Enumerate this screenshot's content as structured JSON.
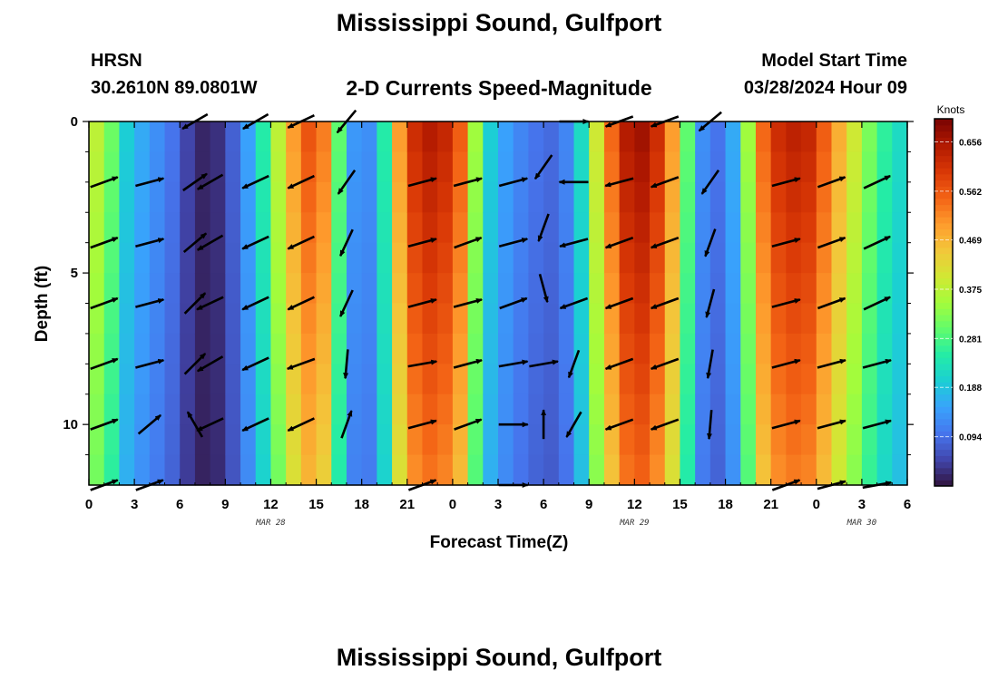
{
  "header": {
    "title": "Mississippi Sound, Gulfport",
    "station_code": "HRSN",
    "coordinates": "30.2610N  89.0801W",
    "subtitle": "2-D Currents Speed-Magnitude",
    "model_start_label": "Model Start Time",
    "model_start_value": "03/28/2024 Hour 09",
    "footer_title": "Mississippi Sound, Gulfport"
  },
  "colors": {
    "ramp": [
      "#30123b",
      "#4145ab",
      "#4675ed",
      "#39a2fc",
      "#1bcfd4",
      "#24eca6",
      "#61fc6c",
      "#a4fc3b",
      "#d1e834",
      "#f3c63a",
      "#fe9b2d",
      "#f36315",
      "#d93806",
      "#b11901",
      "#7a0402"
    ],
    "arrow": "#000000",
    "frame": "#000000"
  },
  "chart_data": {
    "type": "heatmap",
    "title": "2-D Currents Speed-Magnitude",
    "xlabel": "Forecast Time(Z)",
    "ylabel": "Depth (ft)",
    "x_ticks": [
      "0",
      "3",
      "6",
      "9",
      "12",
      "15",
      "18",
      "21",
      "0",
      "3",
      "6",
      "9",
      "12",
      "15",
      "18",
      "21",
      "0",
      "3",
      "6"
    ],
    "date_labels": [
      {
        "label": "MAR 28",
        "hour": 12
      },
      {
        "label": "MAR 29",
        "hour": 36
      },
      {
        "label": "MAR 30",
        "hour": 51
      }
    ],
    "x_range_hours": [
      0,
      54
    ],
    "y_ticks": [
      "0",
      "5",
      "10"
    ],
    "y_range_ft": [
      0,
      12
    ],
    "colorbar": {
      "unit": "Knots",
      "min": 0.0,
      "max": 0.7,
      "ticks": [
        "0.656",
        "0.562",
        "0.469",
        "0.375",
        "0.281",
        "0.188",
        "0.094"
      ]
    },
    "speed_by_hour_knots": [
      0.38,
      0.31,
      0.2,
      0.16,
      0.13,
      0.1,
      0.05,
      0.02,
      0.03,
      0.08,
      0.15,
      0.25,
      0.38,
      0.5,
      0.57,
      0.53,
      0.3,
      0.14,
      0.13,
      0.25,
      0.5,
      0.62,
      0.65,
      0.63,
      0.56,
      0.35,
      0.2,
      0.15,
      0.12,
      0.1,
      0.09,
      0.12,
      0.22,
      0.4,
      0.55,
      0.65,
      0.67,
      0.62,
      0.5,
      0.3,
      0.13,
      0.1,
      0.16,
      0.35,
      0.55,
      0.62,
      0.64,
      0.63,
      0.56,
      0.48,
      0.4,
      0.32,
      0.26,
      0.22,
      0.18
    ],
    "arrows": [
      {
        "hour": 1,
        "dir": [
          {
            "depth": 2,
            "angle": 20
          },
          {
            "depth": 4,
            "angle": 20
          },
          {
            "depth": 6,
            "angle": 20
          },
          {
            "depth": 8,
            "angle": 20
          },
          {
            "depth": 10,
            "angle": 20
          },
          {
            "depth": 12,
            "angle": 20
          }
        ]
      },
      {
        "hour": 4,
        "dir": [
          {
            "depth": 2,
            "angle": 15
          },
          {
            "depth": 4,
            "angle": 15
          },
          {
            "depth": 6,
            "angle": 15
          },
          {
            "depth": 8,
            "angle": 15
          },
          {
            "depth": 10,
            "angle": 40
          },
          {
            "depth": 12,
            "angle": 20
          }
        ]
      },
      {
        "hour": 7,
        "dir": [
          {
            "depth": 0,
            "angle": -150
          },
          {
            "depth": 2,
            "angle": 35
          },
          {
            "depth": 4,
            "angle": 40
          },
          {
            "depth": 6,
            "angle": 45
          },
          {
            "depth": 8,
            "angle": 45
          },
          {
            "depth": 10,
            "angle": 120
          }
        ]
      },
      {
        "hour": 8,
        "dir": [
          {
            "depth": 2,
            "angle": -150
          },
          {
            "depth": 4,
            "angle": -150
          },
          {
            "depth": 6,
            "angle": -155
          },
          {
            "depth": 8,
            "angle": -150
          },
          {
            "depth": 10,
            "angle": -155
          }
        ]
      },
      {
        "hour": 11,
        "dir": [
          {
            "depth": 0,
            "angle": -150
          },
          {
            "depth": 2,
            "angle": -155
          },
          {
            "depth": 4,
            "angle": -155
          },
          {
            "depth": 6,
            "angle": -155
          },
          {
            "depth": 8,
            "angle": -155
          },
          {
            "depth": 10,
            "angle": -155
          }
        ]
      },
      {
        "hour": 14,
        "dir": [
          {
            "depth": 0,
            "angle": -155
          },
          {
            "depth": 2,
            "angle": -155
          },
          {
            "depth": 4,
            "angle": -155
          },
          {
            "depth": 6,
            "angle": -155
          },
          {
            "depth": 8,
            "angle": -160
          },
          {
            "depth": 10,
            "angle": -155
          }
        ]
      },
      {
        "hour": 17,
        "dir": [
          {
            "depth": 0,
            "angle": -130
          },
          {
            "depth": 2,
            "angle": -125
          },
          {
            "depth": 4,
            "angle": -115
          },
          {
            "depth": 6,
            "angle": -115
          },
          {
            "depth": 8,
            "angle": -95
          },
          {
            "depth": 10,
            "angle": 70
          }
        ]
      },
      {
        "hour": 22,
        "dir": [
          {
            "depth": 2,
            "angle": 15
          },
          {
            "depth": 4,
            "angle": 15
          },
          {
            "depth": 6,
            "angle": 15
          },
          {
            "depth": 8,
            "angle": 10
          },
          {
            "depth": 10,
            "angle": 15
          },
          {
            "depth": 12,
            "angle": 20
          }
        ]
      },
      {
        "hour": 25,
        "dir": [
          {
            "depth": 2,
            "angle": 15
          },
          {
            "depth": 4,
            "angle": 20
          },
          {
            "depth": 6,
            "angle": 15
          },
          {
            "depth": 8,
            "angle": 15
          },
          {
            "depth": 10,
            "angle": 20
          }
        ]
      },
      {
        "hour": 28,
        "dir": [
          {
            "depth": 2,
            "angle": 15
          },
          {
            "depth": 4,
            "angle": 15
          },
          {
            "depth": 6,
            "angle": 20
          },
          {
            "depth": 8,
            "angle": 10
          },
          {
            "depth": 10,
            "angle": 0
          },
          {
            "depth": 12,
            "angle": 0
          }
        ]
      },
      {
        "hour": 30,
        "dir": [
          {
            "depth": 1.5,
            "angle": -125
          },
          {
            "depth": 3.5,
            "angle": -110
          },
          {
            "depth": 5.5,
            "angle": -75
          },
          {
            "depth": 8,
            "angle": 10
          },
          {
            "depth": 10,
            "angle": 90
          }
        ]
      },
      {
        "hour": 32,
        "dir": [
          {
            "depth": 0,
            "angle": 0
          },
          {
            "depth": 2,
            "angle": 180
          },
          {
            "depth": 4,
            "angle": -165
          },
          {
            "depth": 6,
            "angle": -160
          },
          {
            "depth": 8,
            "angle": -110
          },
          {
            "depth": 10,
            "angle": -120
          }
        ]
      },
      {
        "hour": 35,
        "dir": [
          {
            "depth": 0,
            "angle": -160
          },
          {
            "depth": 2,
            "angle": -165
          },
          {
            "depth": 4,
            "angle": -160
          },
          {
            "depth": 6,
            "angle": -160
          },
          {
            "depth": 8,
            "angle": -160
          },
          {
            "depth": 10,
            "angle": -160
          }
        ]
      },
      {
        "hour": 38,
        "dir": [
          {
            "depth": 0,
            "angle": -160
          },
          {
            "depth": 2,
            "angle": -160
          },
          {
            "depth": 4,
            "angle": -160
          },
          {
            "depth": 6,
            "angle": -160
          },
          {
            "depth": 8,
            "angle": -160
          },
          {
            "depth": 10,
            "angle": -160
          }
        ]
      },
      {
        "hour": 41,
        "dir": [
          {
            "depth": 0,
            "angle": -140
          },
          {
            "depth": 2,
            "angle": -125
          },
          {
            "depth": 4,
            "angle": -110
          },
          {
            "depth": 6,
            "angle": -105
          },
          {
            "depth": 8,
            "angle": -100
          },
          {
            "depth": 10,
            "angle": -95
          }
        ]
      },
      {
        "hour": 46,
        "dir": [
          {
            "depth": 2,
            "angle": 15
          },
          {
            "depth": 4,
            "angle": 15
          },
          {
            "depth": 6,
            "angle": 15
          },
          {
            "depth": 8,
            "angle": 15
          },
          {
            "depth": 10,
            "angle": 15
          },
          {
            "depth": 12,
            "angle": 20
          }
        ]
      },
      {
        "hour": 49,
        "dir": [
          {
            "depth": 2,
            "angle": 20
          },
          {
            "depth": 4,
            "angle": 20
          },
          {
            "depth": 6,
            "angle": 20
          },
          {
            "depth": 8,
            "angle": 15
          },
          {
            "depth": 10,
            "angle": 15
          },
          {
            "depth": 12,
            "angle": 15
          }
        ]
      },
      {
        "hour": 52,
        "dir": [
          {
            "depth": 2,
            "angle": 25
          },
          {
            "depth": 4,
            "angle": 25
          },
          {
            "depth": 6,
            "angle": 25
          },
          {
            "depth": 8,
            "angle": 15
          },
          {
            "depth": 10,
            "angle": 15
          },
          {
            "depth": 12,
            "angle": 10
          }
        ]
      }
    ]
  }
}
